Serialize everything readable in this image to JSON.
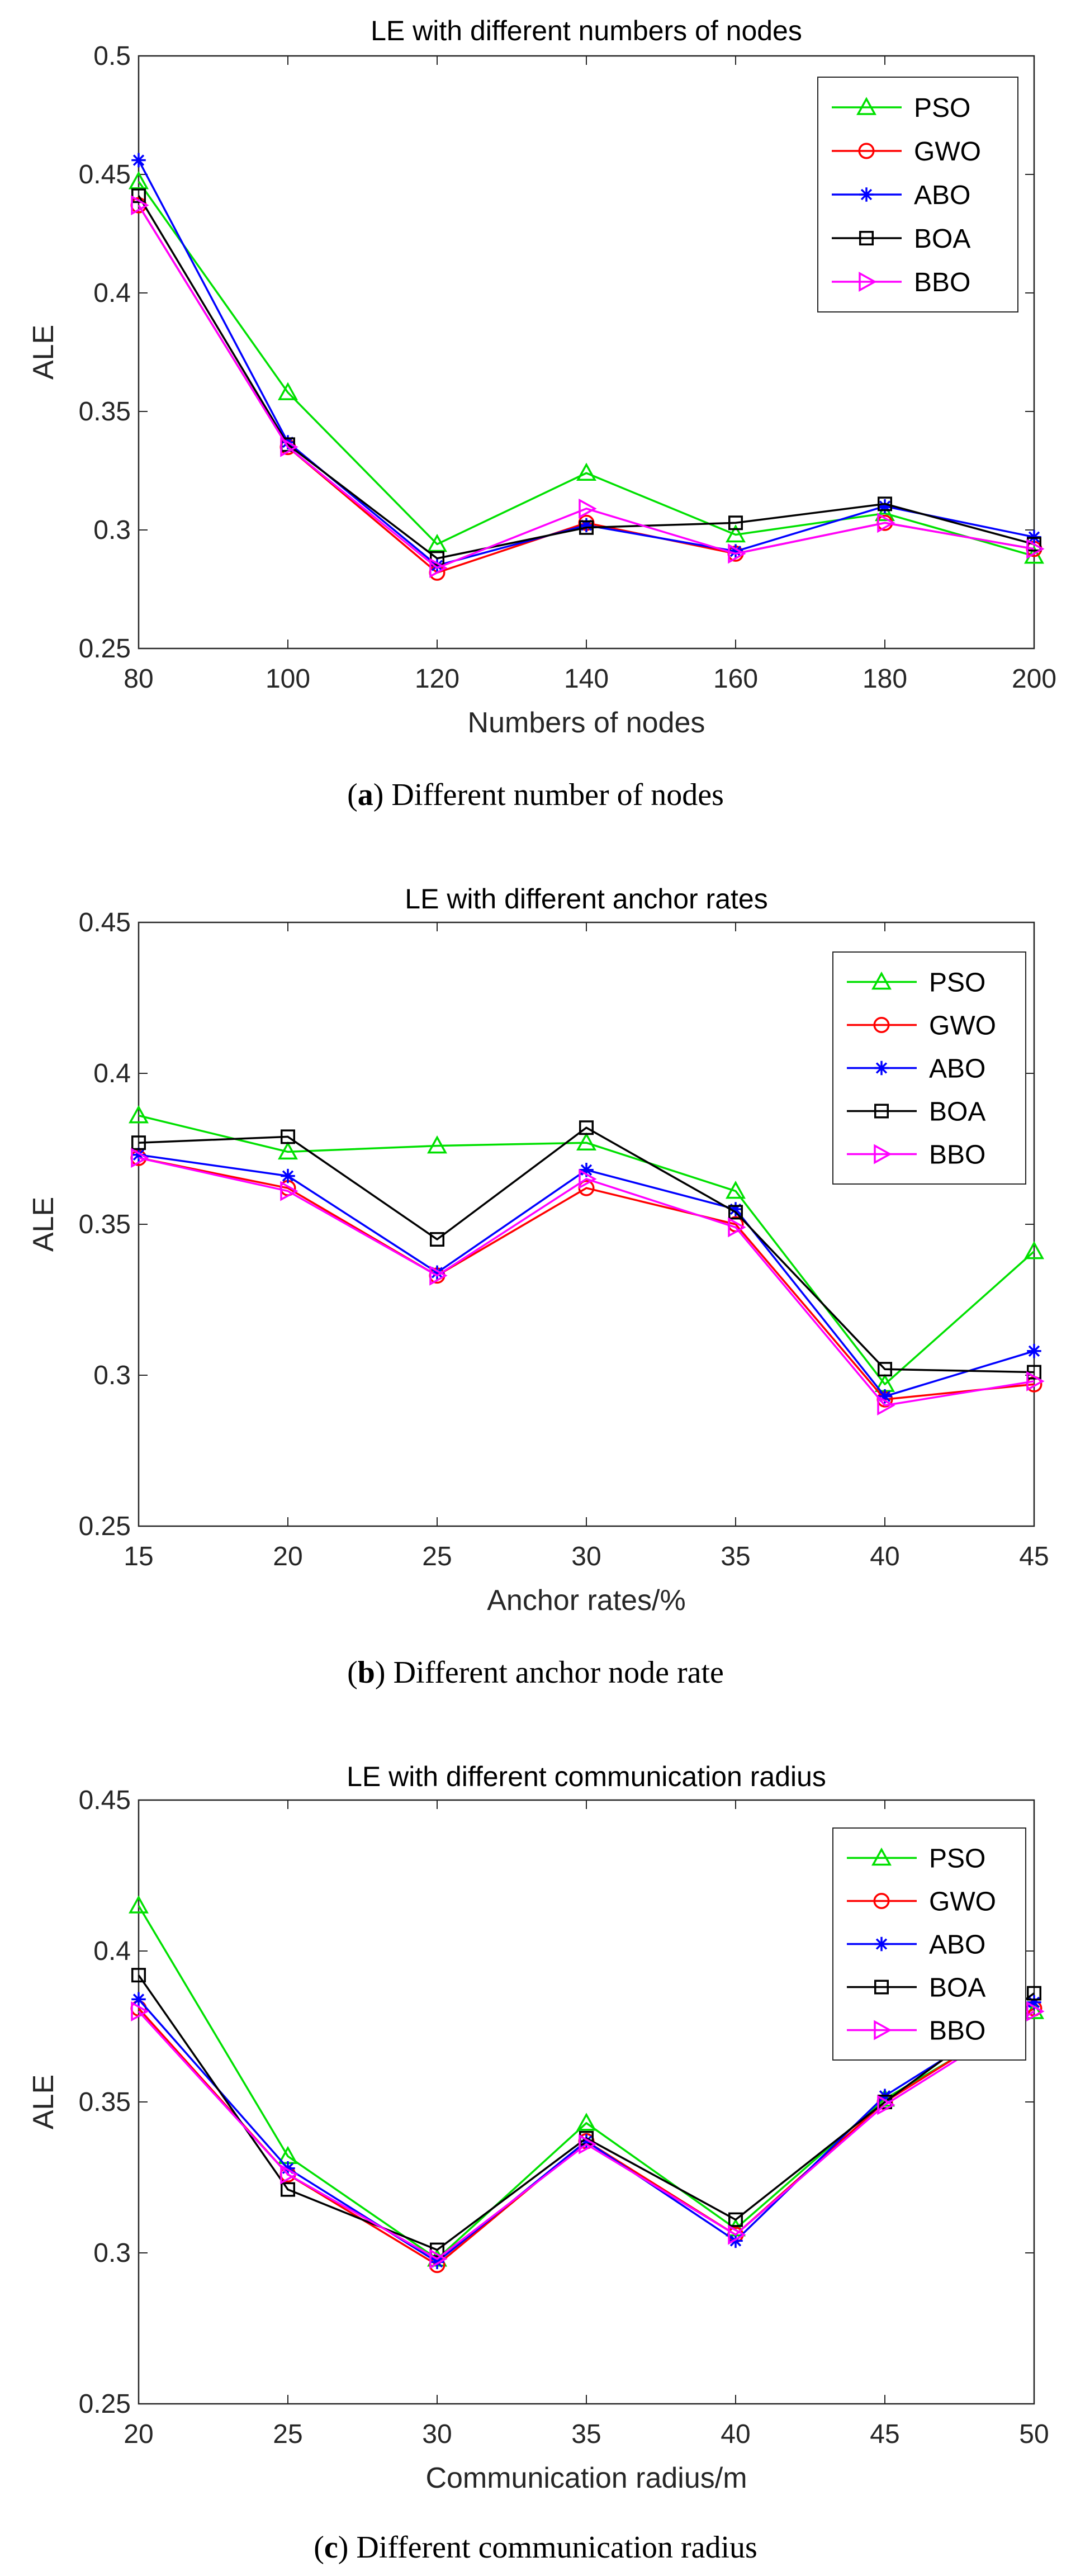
{
  "colors": {
    "PSO": "#00e000",
    "GWO": "#ff0000",
    "ABO": "#0000ff",
    "BOA": "#000000",
    "BBO": "#ff00ff"
  },
  "charts": [
    {
      "caption_letter": "(a)",
      "caption_text": "Different number of nodes",
      "chart_data": {
        "type": "line",
        "title": "LE with different numbers of nodes",
        "xlabel": "Numbers of nodes",
        "ylabel": "ALE",
        "x": [
          80,
          100,
          120,
          140,
          160,
          180,
          200
        ],
        "xlim": [
          80,
          200
        ],
        "ylim": [
          0.25,
          0.5
        ],
        "xticks": [
          80,
          100,
          120,
          140,
          160,
          180,
          200
        ],
        "yticks": [
          0.25,
          0.3,
          0.35,
          0.4,
          0.45,
          0.5
        ],
        "ytick_labels": [
          "0.25",
          "0.3",
          "0.35",
          "0.4",
          "0.45",
          "0.5"
        ],
        "legend_position": "top-right",
        "series": [
          {
            "name": "PSO",
            "marker": "triangle-up",
            "values": [
              0.447,
              0.358,
              0.294,
              0.324,
              0.298,
              0.307,
              0.289
            ]
          },
          {
            "name": "GWO",
            "marker": "circle",
            "values": [
              0.437,
              0.335,
              0.282,
              0.303,
              0.29,
              0.303,
              0.292
            ]
          },
          {
            "name": "ABO",
            "marker": "asterisk",
            "values": [
              0.456,
              0.337,
              0.285,
              0.302,
              0.291,
              0.31,
              0.297
            ]
          },
          {
            "name": "BOA",
            "marker": "square",
            "values": [
              0.441,
              0.336,
              0.288,
              0.301,
              0.303,
              0.311,
              0.294
            ]
          },
          {
            "name": "BBO",
            "marker": "triangle-right",
            "values": [
              0.437,
              0.335,
              0.284,
              0.309,
              0.29,
              0.303,
              0.292
            ]
          }
        ]
      }
    },
    {
      "caption_letter": "(b)",
      "caption_text": "Different anchor node rate",
      "chart_data": {
        "type": "line",
        "title": "LE with different anchor rates",
        "xlabel": "Anchor rates/%",
        "ylabel": "ALE",
        "x": [
          15,
          20,
          25,
          30,
          35,
          40,
          45
        ],
        "xlim": [
          15,
          45
        ],
        "ylim": [
          0.25,
          0.45
        ],
        "xticks": [
          15,
          20,
          25,
          30,
          35,
          40,
          45
        ],
        "yticks": [
          0.25,
          0.3,
          0.35,
          0.4,
          0.45
        ],
        "ytick_labels": [
          "0.25",
          "0.3",
          "0.35",
          "0.4",
          "0.45"
        ],
        "legend_position": "top-right",
        "series": [
          {
            "name": "PSO",
            "marker": "triangle-up",
            "values": [
              0.386,
              0.374,
              0.376,
              0.377,
              0.361,
              0.297,
              0.341
            ]
          },
          {
            "name": "GWO",
            "marker": "circle",
            "values": [
              0.372,
              0.362,
              0.333,
              0.362,
              0.35,
              0.292,
              0.297
            ]
          },
          {
            "name": "ABO",
            "marker": "asterisk",
            "values": [
              0.373,
              0.366,
              0.334,
              0.368,
              0.355,
              0.293,
              0.308
            ]
          },
          {
            "name": "BOA",
            "marker": "square",
            "values": [
              0.377,
              0.379,
              0.345,
              0.382,
              0.354,
              0.302,
              0.301
            ]
          },
          {
            "name": "BBO",
            "marker": "triangle-right",
            "values": [
              0.372,
              0.361,
              0.333,
              0.365,
              0.349,
              0.29,
              0.298
            ]
          }
        ]
      }
    },
    {
      "caption_letter": "(c)",
      "caption_text": "Different communication radius",
      "chart_data": {
        "type": "line",
        "title": "LE with different communication radius",
        "xlabel": "Communication radius/m",
        "ylabel": "ALE",
        "x": [
          20,
          25,
          30,
          35,
          40,
          45,
          50
        ],
        "xlim": [
          20,
          50
        ],
        "ylim": [
          0.25,
          0.45
        ],
        "xticks": [
          20,
          25,
          30,
          35,
          40,
          45,
          50
        ],
        "yticks": [
          0.25,
          0.3,
          0.35,
          0.4,
          0.45
        ],
        "ytick_labels": [
          "0.25",
          "0.3",
          "0.35",
          "0.4",
          "0.45"
        ],
        "legend_position": "top-right",
        "series": [
          {
            "name": "PSO",
            "marker": "triangle-up",
            "values": [
              0.415,
              0.332,
              0.298,
              0.343,
              0.308,
              0.351,
              0.38
            ]
          },
          {
            "name": "GWO",
            "marker": "circle",
            "values": [
              0.381,
              0.326,
              0.296,
              0.337,
              0.306,
              0.35,
              0.381
            ]
          },
          {
            "name": "ABO",
            "marker": "asterisk",
            "values": [
              0.384,
              0.328,
              0.297,
              0.337,
              0.304,
              0.352,
              0.383
            ]
          },
          {
            "name": "BOA",
            "marker": "square",
            "values": [
              0.392,
              0.321,
              0.301,
              0.338,
              0.311,
              0.35,
              0.386
            ]
          },
          {
            "name": "BBO",
            "marker": "triangle-right",
            "values": [
              0.38,
              0.326,
              0.298,
              0.336,
              0.306,
              0.349,
              0.38
            ]
          }
        ]
      }
    }
  ]
}
